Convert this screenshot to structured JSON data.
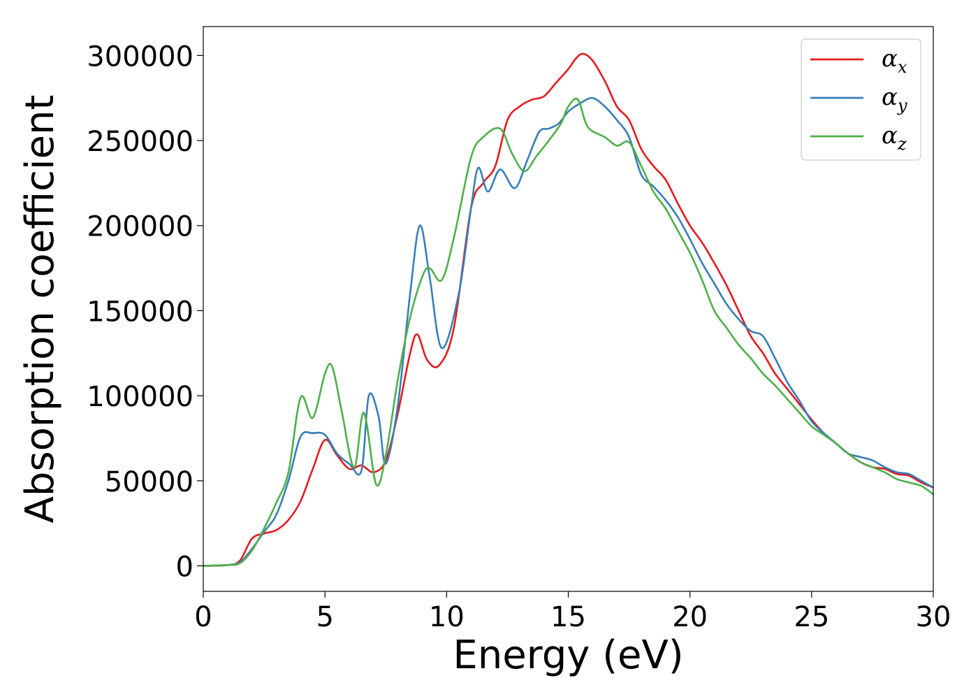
{
  "chart_data": {
    "type": "line",
    "title": "",
    "xlabel": "Energy (eV)",
    "ylabel": "Absorption coefficient",
    "xlim": [
      0,
      30
    ],
    "ylim": [
      -15000,
      317000
    ],
    "xticks": [
      0,
      5,
      10,
      15,
      20,
      25,
      30
    ],
    "xtick_labels": [
      "0",
      "5",
      "10",
      "15",
      "20",
      "25",
      "30"
    ],
    "yticks": [
      0,
      50000,
      100000,
      150000,
      200000,
      250000,
      300000
    ],
    "ytick_labels": [
      "0",
      "50000",
      "100000",
      "150000",
      "200000",
      "250000",
      "300000"
    ],
    "grid": false,
    "legend_position": "top-right",
    "series": [
      {
        "name": "α_x",
        "legend_base": "α",
        "legend_sub": "x",
        "color": "#e41a1c",
        "x": [
          0,
          1,
          1.5,
          2,
          2.5,
          3,
          3.5,
          4,
          4.5,
          5,
          5.5,
          6,
          6.5,
          7,
          7.5,
          8,
          8.5,
          8.8,
          9.2,
          9.7,
          10.3,
          11,
          11.5,
          12,
          12.5,
          13,
          13.5,
          14,
          14.5,
          15,
          15.3,
          15.6,
          16,
          16.5,
          17,
          17.5,
          18,
          18.5,
          19,
          19.5,
          20,
          20.5,
          21,
          21.5,
          22,
          22.5,
          23,
          23.5,
          24,
          24.5,
          25,
          25.5,
          26,
          26.5,
          27,
          27.5,
          28,
          28.5,
          29,
          29.5,
          30
        ],
        "y": [
          0,
          500,
          3000,
          16000,
          19000,
          21000,
          27000,
          38000,
          57000,
          74000,
          65000,
          57000,
          59000,
          55000,
          62000,
          90000,
          125000,
          136000,
          121000,
          118000,
          140000,
          210000,
          225000,
          235000,
          262000,
          270000,
          274000,
          276000,
          284000,
          292000,
          298000,
          301000,
          297000,
          285000,
          270000,
          262000,
          245000,
          235000,
          227000,
          213000,
          200000,
          190000,
          178000,
          165000,
          150000,
          135000,
          125000,
          113000,
          104000,
          95000,
          86000,
          78000,
          72000,
          66000,
          61000,
          58000,
          57000,
          54000,
          53000,
          49000,
          46000
        ]
      },
      {
        "name": "α_y",
        "legend_base": "α",
        "legend_sub": "y",
        "color": "#377eb8",
        "x": [
          0,
          1,
          1.5,
          2,
          2.5,
          3,
          3.5,
          4,
          4.5,
          5,
          5.5,
          6,
          6.5,
          6.8,
          7.2,
          7.5,
          8,
          8.5,
          8.9,
          9.3,
          9.8,
          10.5,
          11,
          11.3,
          11.7,
          12.2,
          12.8,
          13.3,
          13.8,
          14.2,
          14.6,
          15,
          15.5,
          16,
          16.5,
          17,
          17.5,
          18,
          18.5,
          19,
          19.5,
          20,
          20.5,
          21,
          21.5,
          22,
          22.5,
          23,
          23.5,
          24,
          24.5,
          25,
          25.5,
          26,
          26.5,
          27,
          27.5,
          28,
          28.5,
          29,
          29.5,
          30
        ],
        "y": [
          0,
          500,
          2000,
          10000,
          20000,
          30000,
          50000,
          76000,
          78000,
          77000,
          66000,
          60000,
          56000,
          100000,
          88000,
          60000,
          95000,
          160000,
          200000,
          170000,
          128000,
          160000,
          210000,
          234000,
          220000,
          233000,
          222000,
          238000,
          255000,
          257000,
          260000,
          267000,
          272000,
          275000,
          270000,
          262000,
          252000,
          230000,
          223000,
          215000,
          205000,
          192000,
          178000,
          166000,
          154000,
          145000,
          138000,
          135000,
          122000,
          108000,
          97000,
          85000,
          78000,
          72000,
          66000,
          64000,
          62000,
          58000,
          55000,
          54000,
          50000,
          46000
        ]
      },
      {
        "name": "α_z",
        "legend_base": "α",
        "legend_sub": "z",
        "color": "#4daf4a",
        "x": [
          0,
          1,
          1.5,
          2,
          2.5,
          3,
          3.5,
          4,
          4.5,
          5,
          5.3,
          5.7,
          6.2,
          6.6,
          7.1,
          7.5,
          8,
          8.5,
          9,
          9.3,
          9.8,
          10.3,
          11,
          11.5,
          12.2,
          12.7,
          13.2,
          13.7,
          14.2,
          14.7,
          15,
          15.4,
          15.8,
          16.5,
          17,
          17.5,
          18,
          18.5,
          19,
          19.5,
          20,
          20.5,
          21,
          21.5,
          22,
          22.5,
          23,
          23.5,
          24,
          24.5,
          25,
          25.5,
          26,
          26.5,
          27,
          27.5,
          28,
          28.5,
          29,
          29.5,
          30
        ],
        "y": [
          0,
          500,
          1500,
          9000,
          22000,
          37000,
          55000,
          99000,
          87000,
          113000,
          117000,
          90000,
          58000,
          90000,
          48000,
          65000,
          110000,
          146000,
          170000,
          175000,
          168000,
          193000,
          240000,
          252000,
          257000,
          242000,
          232000,
          241000,
          250000,
          260000,
          270000,
          274000,
          258000,
          252000,
          247000,
          249000,
          235000,
          220000,
          210000,
          197000,
          184000,
          168000,
          150000,
          140000,
          130000,
          122000,
          113000,
          106000,
          98000,
          90000,
          82000,
          77000,
          72000,
          66000,
          61000,
          58000,
          55000,
          51000,
          49000,
          47000,
          42000
        ]
      }
    ]
  }
}
